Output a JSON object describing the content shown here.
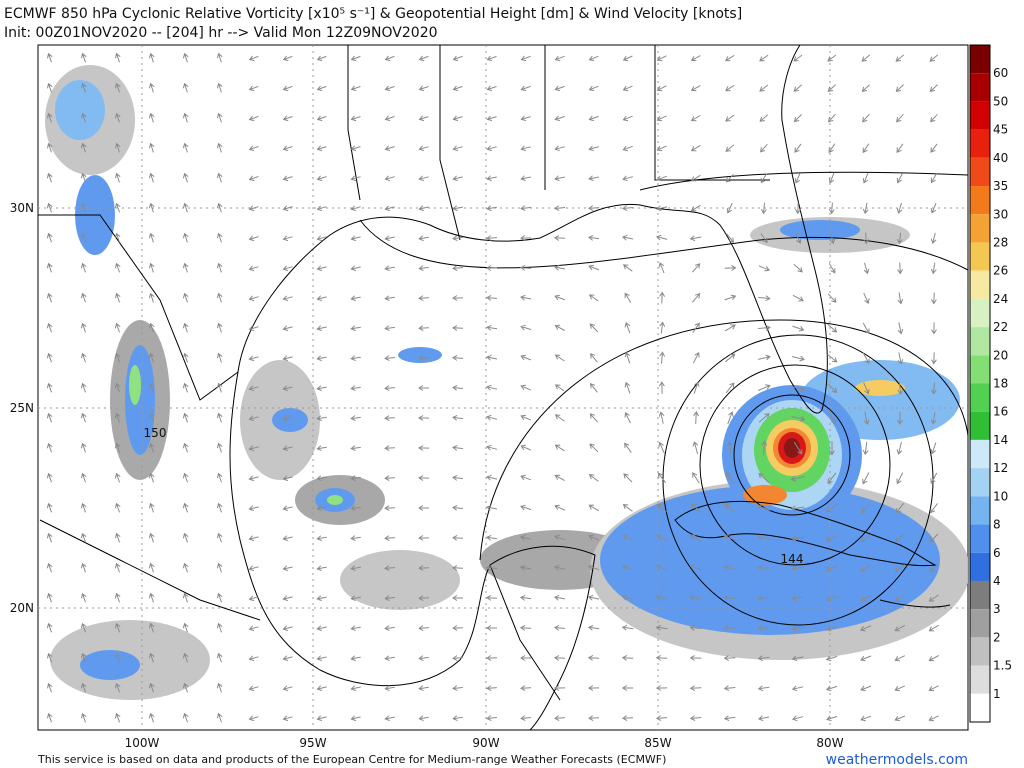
{
  "header": {
    "title": "ECMWF 850 hPa Cyclonic Relative Vorticity [x10⁵ s⁻¹] & Geopotential Height [dm] & Wind Velocity [knots]",
    "subtitle": "Init: 00Z01NOV2020 -- [204] hr --> Valid Mon 12Z09NOV2020"
  },
  "colorbar": {
    "labels": [
      "60",
      "50",
      "45",
      "40",
      "35",
      "30",
      "28",
      "26",
      "24",
      "22",
      "20",
      "18",
      "16",
      "14",
      "12",
      "10",
      "8",
      "6",
      "4",
      "3",
      "2",
      "1.5",
      "1"
    ],
    "colors": [
      "#7a0000",
      "#a80000",
      "#d20000",
      "#e8200e",
      "#f04a18",
      "#f27a1a",
      "#f3a233",
      "#f4c752",
      "#f6eaa2",
      "#d8f1c3",
      "#b1e8a1",
      "#83de74",
      "#52d052",
      "#2fbf34",
      "#cde9f8",
      "#a4d2f3",
      "#75b3f1",
      "#4f90ee",
      "#2f6fdf",
      "#7d7d7d",
      "#9f9f9f",
      "#c0c0c0",
      "#dddddd",
      "#ffffff"
    ]
  },
  "axes": {
    "lat_labels": [
      "30N",
      "25N",
      "20N"
    ],
    "lon_labels": [
      "100W",
      "95W",
      "90W",
      "85W",
      "80W"
    ]
  },
  "contour_labels": [
    "150",
    "144"
  ],
  "footer": {
    "credit": "This service is based on data and products of the European Centre for Medium-range Weather Forecasts (ECMWF)",
    "site": "weathermodels.com"
  }
}
